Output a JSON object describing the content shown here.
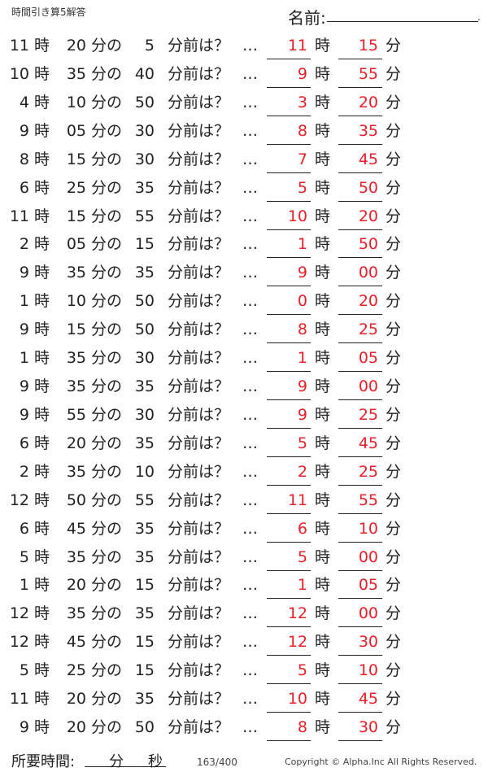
{
  "title": "時間引き算5解答",
  "name_label": "名前:",
  "labels": {
    "hour": "時",
    "min_of": "分の",
    "before": "分前は？",
    "dots": "…",
    "min": "分"
  },
  "rows": [
    {
      "h": "11",
      "m": "20",
      "s": "5",
      "ah": "11",
      "am": "15"
    },
    {
      "h": "10",
      "m": "35",
      "s": "40",
      "ah": "9",
      "am": "55"
    },
    {
      "h": "4",
      "m": "10",
      "s": "50",
      "ah": "3",
      "am": "20"
    },
    {
      "h": "9",
      "m": "05",
      "s": "30",
      "ah": "8",
      "am": "35"
    },
    {
      "h": "8",
      "m": "15",
      "s": "30",
      "ah": "7",
      "am": "45"
    },
    {
      "h": "6",
      "m": "25",
      "s": "35",
      "ah": "5",
      "am": "50"
    },
    {
      "h": "11",
      "m": "15",
      "s": "55",
      "ah": "10",
      "am": "20"
    },
    {
      "h": "2",
      "m": "05",
      "s": "15",
      "ah": "1",
      "am": "50"
    },
    {
      "h": "9",
      "m": "35",
      "s": "35",
      "ah": "9",
      "am": "00"
    },
    {
      "h": "1",
      "m": "10",
      "s": "50",
      "ah": "0",
      "am": "20"
    },
    {
      "h": "9",
      "m": "15",
      "s": "50",
      "ah": "8",
      "am": "25"
    },
    {
      "h": "1",
      "m": "35",
      "s": "30",
      "ah": "1",
      "am": "05"
    },
    {
      "h": "9",
      "m": "35",
      "s": "35",
      "ah": "9",
      "am": "00"
    },
    {
      "h": "9",
      "m": "55",
      "s": "30",
      "ah": "9",
      "am": "25"
    },
    {
      "h": "6",
      "m": "20",
      "s": "35",
      "ah": "5",
      "am": "45"
    },
    {
      "h": "2",
      "m": "35",
      "s": "10",
      "ah": "2",
      "am": "25"
    },
    {
      "h": "12",
      "m": "50",
      "s": "55",
      "ah": "11",
      "am": "55"
    },
    {
      "h": "6",
      "m": "45",
      "s": "35",
      "ah": "6",
      "am": "10"
    },
    {
      "h": "5",
      "m": "35",
      "s": "35",
      "ah": "5",
      "am": "00"
    },
    {
      "h": "1",
      "m": "20",
      "s": "15",
      "ah": "1",
      "am": "05"
    },
    {
      "h": "12",
      "m": "35",
      "s": "35",
      "ah": "12",
      "am": "00"
    },
    {
      "h": "12",
      "m": "45",
      "s": "15",
      "ah": "12",
      "am": "30"
    },
    {
      "h": "5",
      "m": "25",
      "s": "15",
      "ah": "5",
      "am": "10"
    },
    {
      "h": "11",
      "m": "20",
      "s": "35",
      "ah": "10",
      "am": "45"
    },
    {
      "h": "9",
      "m": "20",
      "s": "50",
      "ah": "8",
      "am": "30"
    }
  ],
  "footer": {
    "time_label": "所要時間:",
    "min": "分",
    "sec": "秒",
    "page": "163/400",
    "copyright": "Copyright ©  Alpha.Inc All Rights Reserved."
  },
  "colors": {
    "answer": "#e8202a"
  }
}
